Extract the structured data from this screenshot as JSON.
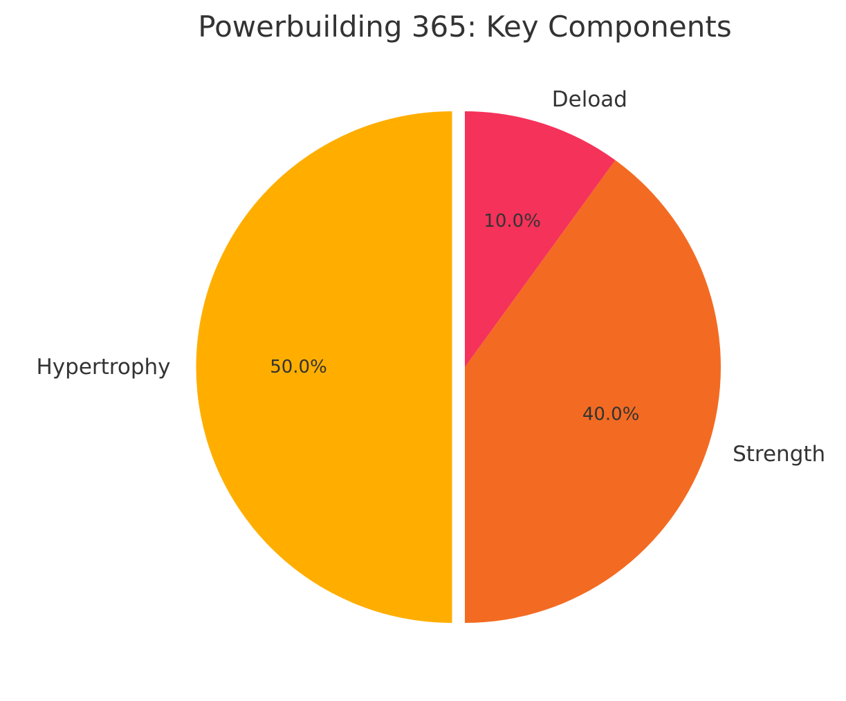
{
  "chart_data": {
    "type": "pie",
    "title": "Powerbuilding 365: Key Components",
    "labels": [
      "Hypertrophy",
      "Strength",
      "Deload"
    ],
    "values": [
      50.0,
      40.0,
      10.0
    ],
    "percent_labels": [
      "50.0%",
      "40.0%",
      "10.0%"
    ],
    "colors": [
      "#FFAE00",
      "#F36B22",
      "#F5325A"
    ],
    "explode": [
      0.05,
      0,
      0
    ],
    "start_angle_deg": 90,
    "direction": "counterclockwise",
    "legend": "none"
  }
}
